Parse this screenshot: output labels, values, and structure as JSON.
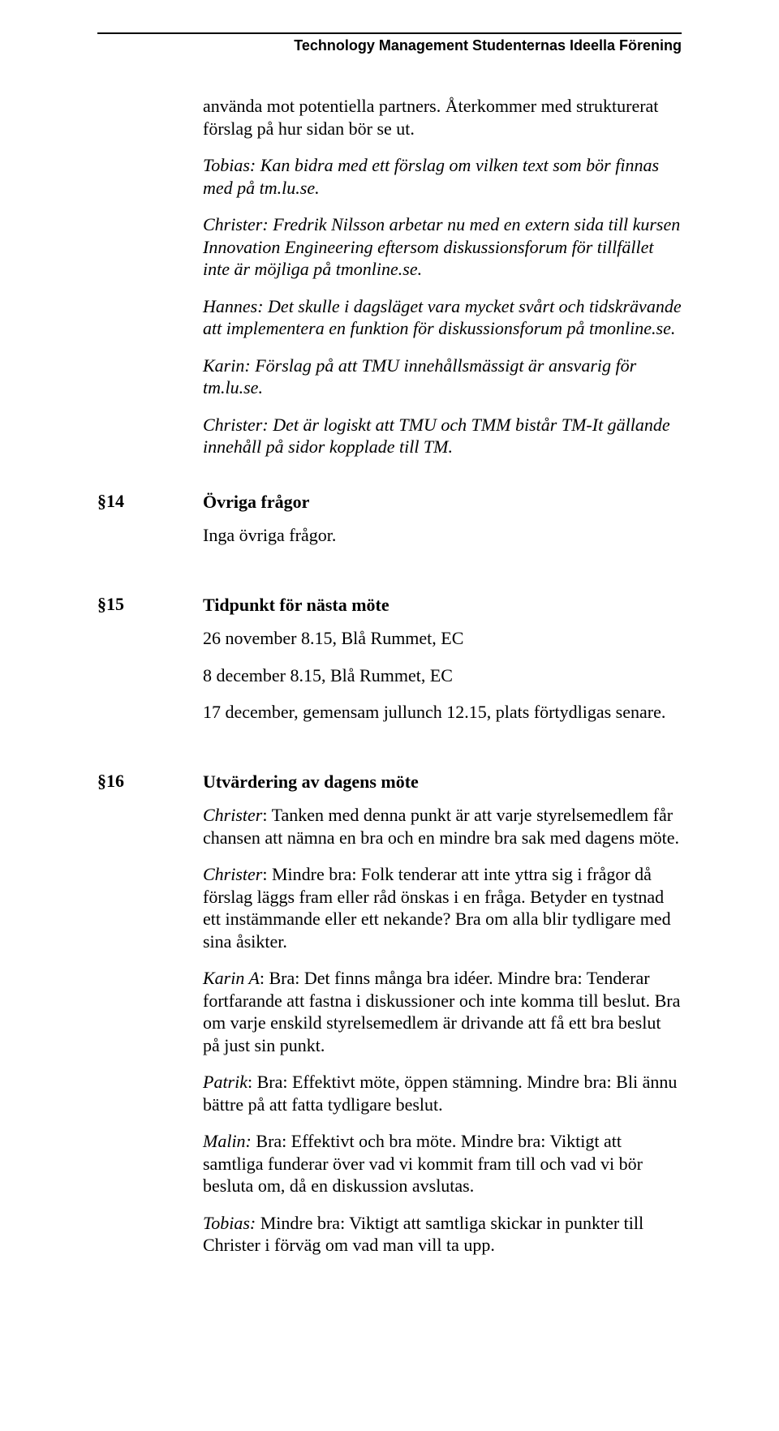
{
  "header": {
    "org": "Technology Management Studenternas Ideella Förening"
  },
  "intro": {
    "p1a": "använda mot potentiella partners. Återkommer med strukturerat förslag på hur sidan bör se ut.",
    "p1b_prefix": "Tobias:",
    "p1b_rest": " Kan bidra med ett förslag om vilken text som bör finnas med på tm.lu.se.",
    "p2_prefix": "Christer:",
    "p2_rest": " Fredrik Nilsson arbetar nu med en extern sida till kursen Innovation Engineering eftersom diskussionsforum för tillfället inte är möjliga på tmonline.se.",
    "p3_prefix": "Hannes:",
    "p3_rest": " Det skulle i dagsläget vara mycket svårt och tidskrävande att implementera en funktion för diskussionsforum på tmonline.se.",
    "p4_prefix": "Karin:",
    "p4_rest": " Förslag på att TMU innehållsmässigt är ansvarig för tm.lu.se.",
    "p5_prefix": "Christer:",
    "p5_rest": " Det är logiskt att TMU och TMM bistår TM-It gällande innehåll på sidor kopplade till TM."
  },
  "s14": {
    "num": "§14",
    "title": "Övriga frågor",
    "p1": "Inga övriga frågor."
  },
  "s15": {
    "num": "§15",
    "title": "Tidpunkt för nästa möte",
    "p1": "26 november 8.15, Blå Rummet, EC",
    "p2": "8 december 8.15, Blå Rummet, EC",
    "p3": "17 december, gemensam jullunch 12.15, plats förtydligas senare."
  },
  "s16": {
    "num": "§16",
    "title": "Utvärdering av dagens möte",
    "p1_prefix": "Christer",
    "p1_rest": ": Tanken med denna punkt är att varje styrelsemedlem får chansen att nämna en bra och en mindre bra sak med dagens möte.",
    "p2_prefix": "Christer",
    "p2_rest": ": Mindre bra: Folk tenderar att inte yttra sig i frågor då förslag läggs fram eller råd önskas i en fråga. Betyder en tystnad ett instämmande eller ett nekande? Bra om alla blir tydligare med sina åsikter.",
    "p3_prefix": "Karin A",
    "p3_rest": ": Bra: Det finns många bra idéer. Mindre bra: Tenderar fortfarande att fastna i diskussioner och inte komma till beslut. Bra om varje enskild styrelsemedlem är drivande att få ett bra beslut på just sin punkt.",
    "p4_prefix": "Patrik",
    "p4_rest": ": Bra: Effektivt möte, öppen stämning. Mindre bra: Bli ännu bättre på att fatta tydligare beslut.",
    "p5_prefix": "Malin:",
    "p5_rest": " Bra: Effektivt och bra möte. Mindre bra: Viktigt att samtliga funderar över vad vi kommit fram till och vad vi bör besluta om, då en diskussion avslutas.",
    "p6_prefix": "Tobias:",
    "p6_rest": " Mindre bra: Viktigt att samtliga skickar in punkter till Christer i förväg om vad man vill ta upp."
  }
}
